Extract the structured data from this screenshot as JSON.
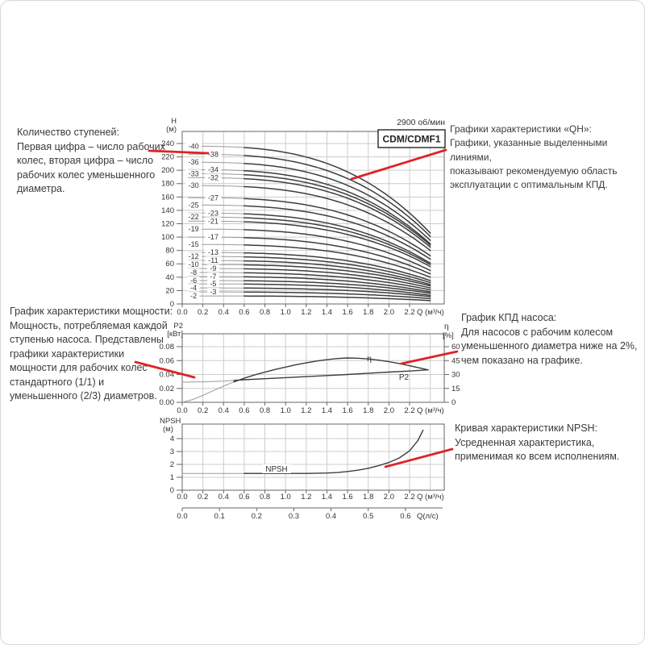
{
  "page": {
    "background": "#ffffff",
    "frame_border": "#d8d8d8"
  },
  "colors": {
    "curve_dark": "#3d3d3d",
    "curve_light": "#9a9a9a",
    "grid": "#cccccc",
    "plot_border": "#666666",
    "axis_text": "#333333",
    "accent_red": "#e02228",
    "note_text": "#3a3a3a"
  },
  "annotations": {
    "stage_count": {
      "lines": [
        "Количество ступеней:",
        "Первая цифра – число рабочих",
        "колес, вторая цифра – число",
        "рабочих колес уменьшенного",
        "диаметра."
      ]
    },
    "qh": {
      "lines": [
        "Графики характеристики «QH»:",
        "Графики, указанные выделенными линиями,",
        "показывают рекомендуемую область",
        "эксплуатации с оптимальным КПД."
      ]
    },
    "power": {
      "lines": [
        "График характеристики мощности:",
        "Мощность, потребляемая каждой",
        "ступенью насоса. Представлены",
        "графики характеристики",
        "мощности для рабочих колес",
        "стандартного (1/1) и",
        "уменьшенного (2/3) диаметров."
      ]
    },
    "efficiency": {
      "lines": [
        "График КПД насоса:",
        "Для насосов с рабочим колесом",
        "уменьшенного диаметра ниже на 2%,",
        "чем показано на графике."
      ]
    },
    "npsh": {
      "lines": [
        "Кривая характеристики NPSH:",
        "Усредненная характеристика,",
        "применимая ко всем исполнениям."
      ]
    }
  },
  "chart_data": [
    {
      "id": "qh",
      "type": "line",
      "title": "CDM/CDMF1",
      "speed_label": "2900 об/мин",
      "xlabel": "Q (м³/ч)",
      "ylabel_lines": [
        "H",
        "(м)"
      ],
      "xlim": [
        0,
        2.53
      ],
      "ylim": [
        0,
        258
      ],
      "grid": true,
      "x_ticks": [
        "0.0",
        "0.2",
        "0.4",
        "0.6",
        "0.8",
        "1.0",
        "1.2",
        "1.4",
        "1.6",
        "1.8",
        "2.0",
        "2.2"
      ],
      "y_ticks": [
        0,
        20,
        40,
        60,
        80,
        100,
        120,
        140,
        160,
        180,
        200,
        220,
        240
      ],
      "flow_end_m3h": 2.4,
      "recommended_bold_from_q": 0.62,
      "curves": [
        {
          "label": "-40",
          "shutoff_head_m": 236,
          "head_at_max_flow_m": 106
        },
        {
          "label": "-38",
          "shutoff_head_m": 224,
          "head_at_max_flow_m": 101
        },
        {
          "label": "-36",
          "shutoff_head_m": 212,
          "head_at_max_flow_m": 95
        },
        {
          "label": "-34",
          "shutoff_head_m": 201,
          "head_at_max_flow_m": 90
        },
        {
          "label": "-33",
          "shutoff_head_m": 195,
          "head_at_max_flow_m": 88
        },
        {
          "label": "-32",
          "shutoff_head_m": 189,
          "head_at_max_flow_m": 85
        },
        {
          "label": "-30",
          "shutoff_head_m": 177,
          "head_at_max_flow_m": 80
        },
        {
          "label": "-27",
          "shutoff_head_m": 159,
          "head_at_max_flow_m": 72
        },
        {
          "label": "-25",
          "shutoff_head_m": 148,
          "head_at_max_flow_m": 67
        },
        {
          "label": "-23",
          "shutoff_head_m": 136,
          "head_at_max_flow_m": 61
        },
        {
          "label": "-22",
          "shutoff_head_m": 130,
          "head_at_max_flow_m": 59
        },
        {
          "label": "-21",
          "shutoff_head_m": 124,
          "head_at_max_flow_m": 56
        },
        {
          "label": "-19",
          "shutoff_head_m": 112,
          "head_at_max_flow_m": 50
        },
        {
          "label": "-17",
          "shutoff_head_m": 100,
          "head_at_max_flow_m": 45
        },
        {
          "label": "-15",
          "shutoff_head_m": 89,
          "head_at_max_flow_m": 40
        },
        {
          "label": "-13",
          "shutoff_head_m": 77,
          "head_at_max_flow_m": 35
        },
        {
          "label": "-12",
          "shutoff_head_m": 71,
          "head_at_max_flow_m": 32
        },
        {
          "label": "-11",
          "shutoff_head_m": 65,
          "head_at_max_flow_m": 29
        },
        {
          "label": "-10",
          "shutoff_head_m": 59,
          "head_at_max_flow_m": 27
        },
        {
          "label": "-9",
          "shutoff_head_m": 53,
          "head_at_max_flow_m": 24
        },
        {
          "label": "-8",
          "shutoff_head_m": 47,
          "head_at_max_flow_m": 21
        },
        {
          "label": "-7",
          "shutoff_head_m": 41,
          "head_at_max_flow_m": 18
        },
        {
          "label": "-6",
          "shutoff_head_m": 35,
          "head_at_max_flow_m": 16
        },
        {
          "label": "-5",
          "shutoff_head_m": 30,
          "head_at_max_flow_m": 13
        },
        {
          "label": "-4",
          "shutoff_head_m": 24,
          "head_at_max_flow_m": 11
        },
        {
          "label": "-3",
          "shutoff_head_m": 18,
          "head_at_max_flow_m": 8
        },
        {
          "label": "-2",
          "shutoff_head_m": 12,
          "head_at_max_flow_m": 5
        }
      ]
    },
    {
      "id": "power",
      "type": "line",
      "xlabel": "Q (м³/ч)",
      "ylabel_left_lines": [
        "P2",
        "[кВт]"
      ],
      "ylabel_right_lines": [
        "η",
        "[%]"
      ],
      "xlim": [
        0,
        2.53
      ],
      "ylim_left": [
        0,
        0.0985
      ],
      "ylim_right": [
        0,
        73.9
      ],
      "grid": true,
      "x_ticks": [
        "0.0",
        "0.2",
        "0.4",
        "0.6",
        "0.8",
        "1.0",
        "1.2",
        "1.4",
        "1.6",
        "1.8",
        "2.0",
        "2.2"
      ],
      "y_ticks_left": [
        "0.00",
        "0.02",
        "0.04",
        "0.06",
        "0.08"
      ],
      "y_ticks_right": [
        0,
        15,
        30,
        45,
        60
      ],
      "series": [
        {
          "name": "P2",
          "axis": "left",
          "points": [
            [
              0,
              0.029
            ],
            [
              0.2,
              0.0295
            ],
            [
              0.4,
              0.0305
            ],
            [
              0.5,
              0.0315
            ],
            [
              0.6,
              0.0325
            ],
            [
              0.8,
              0.034
            ],
            [
              1.0,
              0.0355
            ],
            [
              1.2,
              0.037
            ],
            [
              1.4,
              0.0385
            ],
            [
              1.6,
              0.04
            ],
            [
              1.8,
              0.0418
            ],
            [
              2.0,
              0.0435
            ],
            [
              2.2,
              0.045
            ],
            [
              2.38,
              0.0467
            ]
          ]
        },
        {
          "name": "η",
          "axis": "right",
          "points": [
            [
              0,
              0
            ],
            [
              0.1,
              3
            ],
            [
              0.2,
              7.5
            ],
            [
              0.3,
              12.5
            ],
            [
              0.4,
              17.5
            ],
            [
              0.5,
              22
            ],
            [
              0.6,
              26
            ],
            [
              0.7,
              29.5
            ],
            [
              0.8,
              32.5
            ],
            [
              0.9,
              35.5
            ],
            [
              1.0,
              38
            ],
            [
              1.1,
              40.5
            ],
            [
              1.2,
              42.5
            ],
            [
              1.3,
              44.5
            ],
            [
              1.4,
              46
            ],
            [
              1.5,
              47.2
            ],
            [
              1.6,
              47.8
            ],
            [
              1.7,
              47.6
            ],
            [
              1.8,
              46.8
            ],
            [
              1.9,
              45.5
            ],
            [
              2.0,
              43.8
            ],
            [
              2.1,
              41.8
            ],
            [
              2.2,
              39.5
            ],
            [
              2.3,
              37
            ],
            [
              2.38,
              35
            ]
          ]
        }
      ]
    },
    {
      "id": "npsh",
      "type": "line",
      "xlabel": "Q (м³/ч)",
      "xlabel_secondary": "Q(л/с)",
      "ylabel_lines": [
        "NPSH",
        "(м)"
      ],
      "xlim": [
        0,
        2.53
      ],
      "ylim": [
        0,
        5.1
      ],
      "grid": true,
      "x_ticks": [
        "0.0",
        "0.2",
        "0.4",
        "0.6",
        "0.8",
        "1.0",
        "1.2",
        "1.4",
        "1.6",
        "1.8",
        "2.0",
        "2.2"
      ],
      "x2_ticks": [
        "0.0",
        "0.1",
        "0.2",
        "0.3",
        "0.4",
        "0.5",
        "0.6"
      ],
      "y_ticks": [
        0,
        1,
        2,
        3,
        4
      ],
      "lps_to_m3h": 3.6,
      "series": [
        {
          "name": "NPSH",
          "points": [
            [
              0,
              1.3
            ],
            [
              0.6,
              1.3
            ],
            [
              1.0,
              1.3
            ],
            [
              1.2,
              1.3
            ],
            [
              1.4,
              1.33
            ],
            [
              1.5,
              1.37
            ],
            [
              1.6,
              1.45
            ],
            [
              1.7,
              1.55
            ],
            [
              1.8,
              1.7
            ],
            [
              1.9,
              1.9
            ],
            [
              2.0,
              2.15
            ],
            [
              2.1,
              2.5
            ],
            [
              2.2,
              3.05
            ],
            [
              2.28,
              3.85
            ],
            [
              2.33,
              4.65
            ]
          ]
        }
      ]
    }
  ]
}
